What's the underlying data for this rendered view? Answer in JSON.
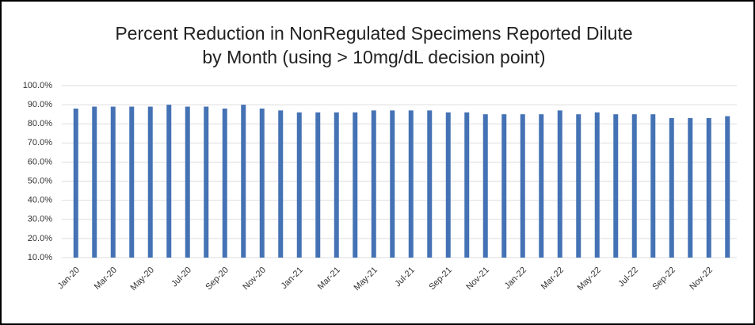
{
  "chart_data": {
    "type": "bar",
    "title": [
      "Percent Reduction in NonRegulated Specimens Reported Dilute",
      "by Month (using > 10mg/dL decision point)"
    ],
    "categories": [
      "Jan-20",
      null,
      "Mar-20",
      null,
      "May-20",
      null,
      "Jul-20",
      null,
      "Sep-20",
      null,
      "Nov-20",
      null,
      "Jan-21",
      null,
      "Mar-21",
      null,
      "May-21",
      null,
      "Jul-21",
      null,
      "Sep-21",
      null,
      "Nov-21",
      null,
      "Jan-22",
      null,
      "Mar-22",
      null,
      "May-22",
      null,
      "Jul-22",
      null,
      "Sep-22",
      null,
      "Nov-22",
      null
    ],
    "values": [
      88,
      89,
      89,
      89,
      89,
      90,
      89,
      89,
      88,
      90,
      88,
      87,
      86,
      86,
      86,
      86,
      87,
      87,
      87,
      87,
      86,
      86,
      85,
      85,
      85,
      85,
      87,
      85,
      86,
      85,
      85,
      85,
      83,
      83,
      83,
      84
    ],
    "color": "#4472b4",
    "ylim": [
      10,
      100
    ],
    "yticks": [
      {
        "value": 10,
        "label": "10.0%"
      },
      {
        "value": 20,
        "label": "20.0%"
      },
      {
        "value": 30,
        "label": "30.0%"
      },
      {
        "value": 40,
        "label": "40.0%"
      },
      {
        "value": 50,
        "label": "50.0%"
      },
      {
        "value": 60,
        "label": "60.0%"
      },
      {
        "value": 70,
        "label": "70.0%"
      },
      {
        "value": 80,
        "label": "80.0%"
      },
      {
        "value": 90,
        "label": "90.0%"
      },
      {
        "value": 100,
        "label": "100.0%"
      }
    ],
    "grid": true
  }
}
